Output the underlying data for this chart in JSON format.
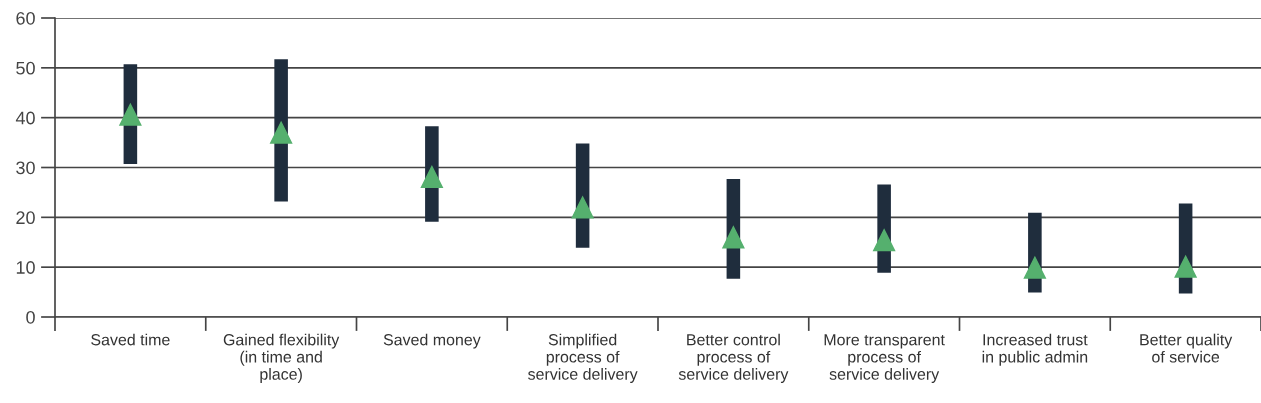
{
  "chart_data": {
    "type": "bar",
    "categories": [
      "Saved time",
      "Gained flexibility\n(in time and\nplace)",
      "Saved money",
      "Simplified\nprocess of\nservice delivery",
      "Better control\nprocess of\nservice delivery",
      "More transparent\nprocess of\nservice delivery",
      "Increased trust\nin public admin",
      "Better quality\nof service"
    ],
    "series": [
      {
        "color": "#1f2d3d",
        "base": [
          30.7,
          23.2,
          19.1,
          13.9,
          7.7,
          8.9,
          4.9,
          4.7
        ],
        "values": [
          20.0,
          28.5,
          19.2,
          20.9,
          20.0,
          17.7,
          16.0,
          18.1
        ]
      },
      {
        "type": "scatter",
        "color": "#55b06e",
        "marker": "triangle",
        "x": [
          "Saved time",
          "Gained flexibility\n(in time and\nplace)",
          "Saved money",
          "Simplified\nprocess of\nservice delivery",
          "Better control\nprocess of\nservice delivery",
          "More transparent\nprocess of\nservice delivery",
          "Increased trust\nin public admin",
          "Better quality\nof service"
        ],
        "values": [
          40.6,
          37,
          28.1,
          22,
          16,
          15.4,
          9.9,
          10.1
        ]
      }
    ],
    "ylim": [
      0,
      60
    ],
    "yticks": [
      0,
      10,
      20,
      30,
      40,
      50,
      60
    ],
    "grid": "y"
  }
}
